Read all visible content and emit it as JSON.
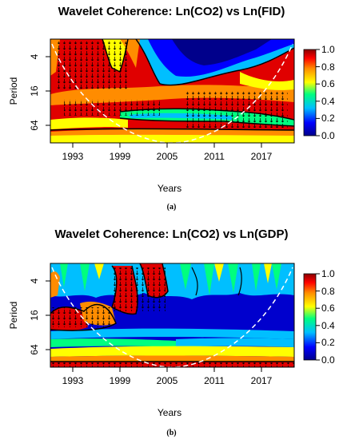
{
  "figures": [
    {
      "title": "Wavelet Coherence: Ln(CO2) vs Ln(FID)",
      "caption": "(a)",
      "xlabel": "Years",
      "ylabel": "Period"
    },
    {
      "title": "Wavelet Coherence: Ln(CO2) vs Ln(GDP)",
      "caption": "(b)",
      "xlabel": "Years",
      "ylabel": "Period"
    }
  ],
  "chart_data": [
    {
      "type": "heatmap",
      "title": "Wavelet Coherence: Ln(CO2) vs Ln(FID)",
      "xlabel": "Years",
      "ylabel": "Period",
      "x_ticks": [
        "1993",
        "1999",
        "2005",
        "2011",
        "2017"
      ],
      "y_ticks": [
        "4",
        "16",
        "64"
      ],
      "xlim": [
        1988,
        2019
      ],
      "ylim": [
        2,
        100
      ],
      "y_scale": "log2-inverted",
      "colorbar": {
        "min": 0.0,
        "max": 1.0,
        "ticks": [
          "0.0",
          "0.2",
          "0.4",
          "0.6",
          "0.8",
          "1.0"
        ]
      },
      "colormap": [
        "#00008b",
        "#0000ff",
        "#00bfff",
        "#00ff7f",
        "#ffff00",
        "#ff8c00",
        "#ff0000",
        "#8b0000"
      ],
      "cone_of_influence": "white-dashed"
    },
    {
      "type": "heatmap",
      "title": "Wavelet Coherence: Ln(CO2) vs Ln(GDP)",
      "xlabel": "Years",
      "ylabel": "Period",
      "x_ticks": [
        "1993",
        "1999",
        "2005",
        "2011",
        "2017"
      ],
      "y_ticks": [
        "4",
        "16",
        "64"
      ],
      "xlim": [
        1988,
        2019
      ],
      "ylim": [
        2,
        100
      ],
      "y_scale": "log2-inverted",
      "colorbar": {
        "min": 0.0,
        "max": 1.0,
        "ticks": [
          "0.0",
          "0.2",
          "0.4",
          "0.6",
          "0.8",
          "1.0"
        ]
      },
      "colormap": [
        "#00008b",
        "#0000ff",
        "#00bfff",
        "#00ff7f",
        "#ffff00",
        "#ff8c00",
        "#ff0000",
        "#8b0000"
      ],
      "cone_of_influence": "white-dashed"
    }
  ]
}
